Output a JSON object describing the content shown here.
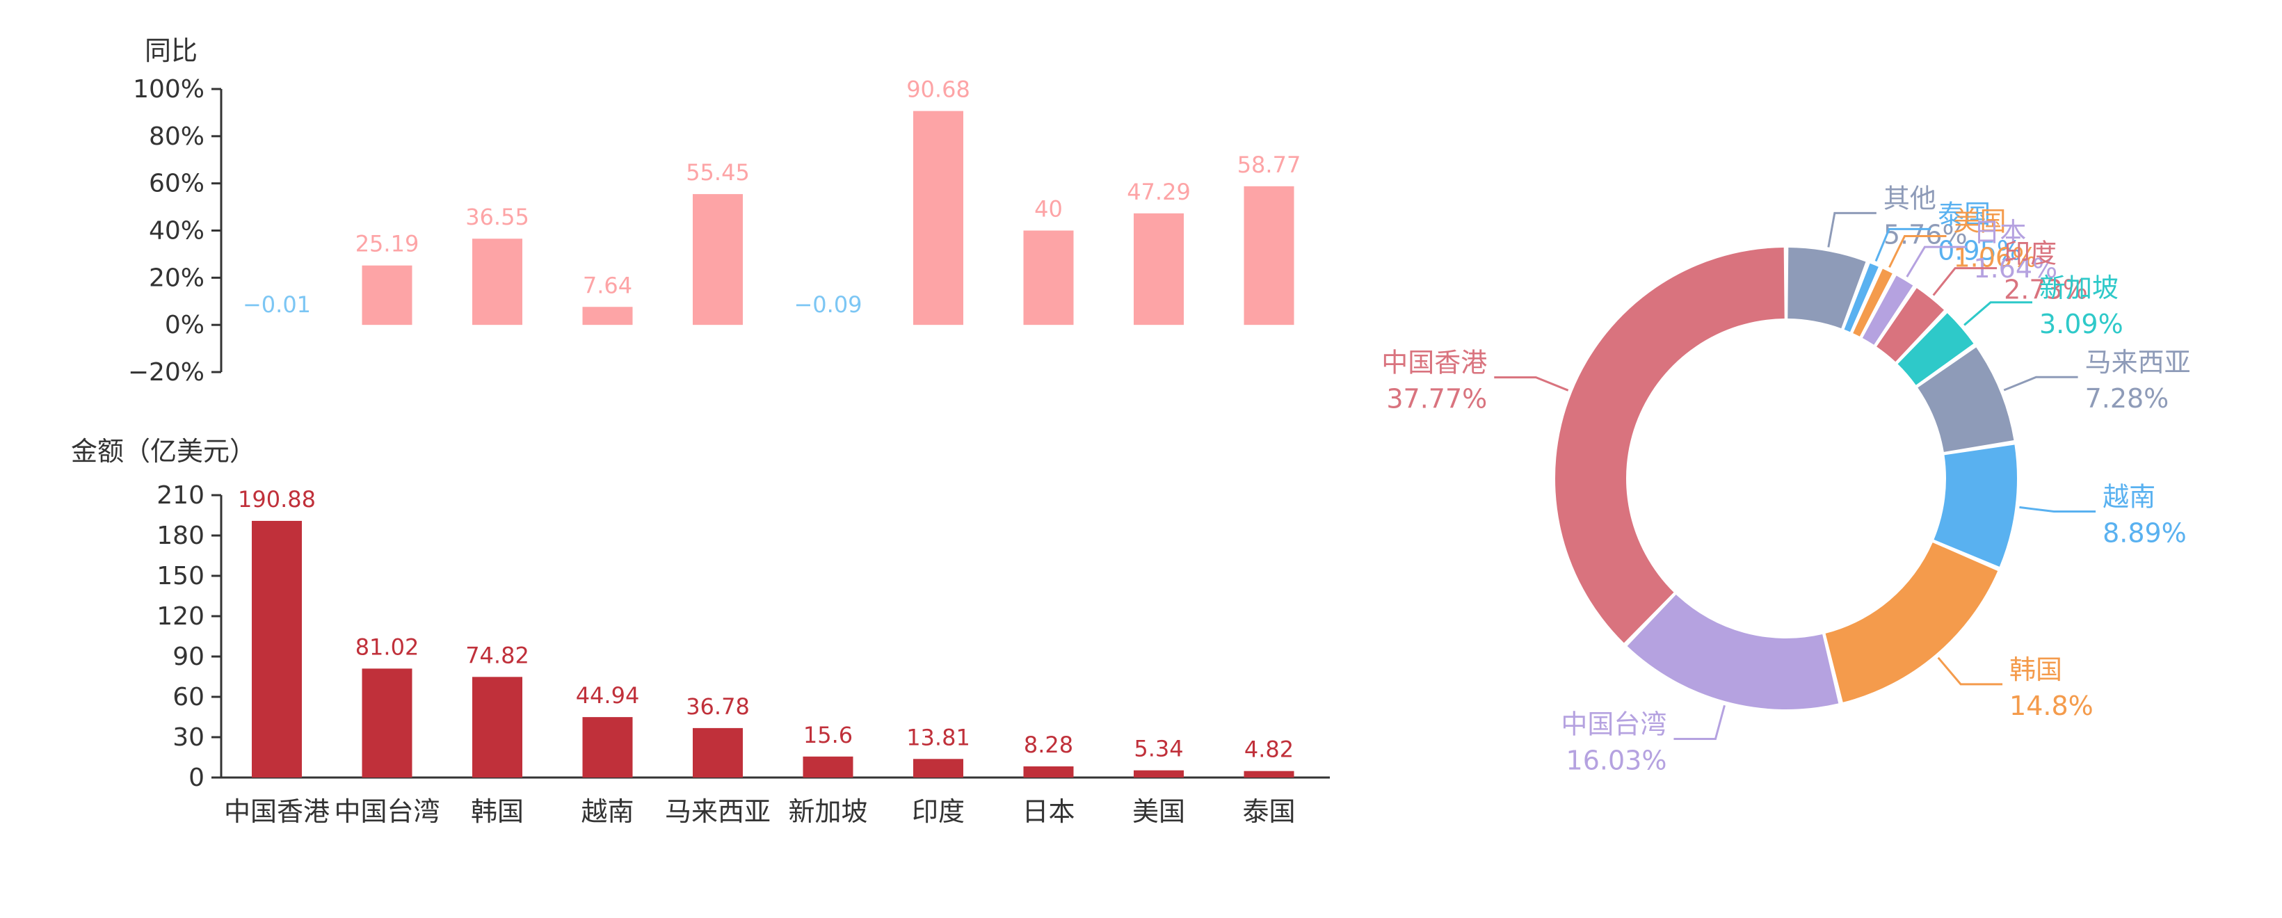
{
  "chart_data": [
    {
      "type": "bar",
      "ylabel": "同比",
      "categories": [
        "中国香港",
        "中国台湾",
        "韩国",
        "越南",
        "马来西亚",
        "新加坡",
        "印度",
        "日本",
        "美国",
        "泰国"
      ],
      "values": [
        -0.01,
        25.19,
        36.55,
        7.64,
        55.45,
        -0.09,
        90.68,
        40,
        47.29,
        58.77
      ],
      "labels": [
        "−0.01",
        "25.19",
        "36.55",
        "7.64",
        "55.45",
        "−0.09",
        "90.68",
        "40",
        "47.29",
        "58.77"
      ],
      "ylim": [
        -20,
        100
      ],
      "ticks": [
        "−20%",
        "0%",
        "20%",
        "40%",
        "60%",
        "80%",
        "100%"
      ],
      "colors": {
        "positive": "#fda4a6",
        "negative": "#7cc6f4"
      }
    },
    {
      "type": "bar",
      "ylabel": "金额（亿美元）",
      "categories": [
        "中国香港",
        "中国台湾",
        "韩国",
        "越南",
        "马来西亚",
        "新加坡",
        "印度",
        "日本",
        "美国",
        "泰国"
      ],
      "values": [
        190.88,
        81.02,
        74.82,
        44.94,
        36.78,
        15.6,
        13.81,
        8.28,
        5.34,
        4.82
      ],
      "labels": [
        "190.88",
        "81.02",
        "74.82",
        "44.94",
        "36.78",
        "15.6",
        "13.81",
        "8.28",
        "5.34",
        "4.82"
      ],
      "ylim": [
        0,
        210
      ],
      "ticks": [
        "0",
        "30",
        "60",
        "90",
        "120",
        "150",
        "180",
        "210"
      ],
      "colors": {
        "bar": "#c0303a",
        "label": "#c0303a"
      }
    },
    {
      "type": "pie",
      "variant": "donut",
      "slices": [
        {
          "name": "其他",
          "value": 5.76,
          "label": "5.76%",
          "color": "#8e9bb8"
        },
        {
          "name": "泰国",
          "value": 0.95,
          "label": "0.95%",
          "color": "#59b1f0"
        },
        {
          "name": "美国",
          "value": 1.06,
          "label": "1.06%",
          "color": "#f49b4c"
        },
        {
          "name": "日本",
          "value": 1.64,
          "label": "1.64%",
          "color": "#b5a2e0"
        },
        {
          "name": "印度",
          "value": 2.73,
          "label": "2.73%",
          "color": "#d9737e"
        },
        {
          "name": "新加坡",
          "value": 3.09,
          "label": "3.09%",
          "color": "#2ec9c9"
        },
        {
          "name": "马来西亚",
          "value": 7.28,
          "label": "7.28%",
          "color": "#8e9bb8"
        },
        {
          "name": "越南",
          "value": 8.89,
          "label": "8.89%",
          "color": "#59b1f0"
        },
        {
          "name": "韩国",
          "value": 14.8,
          "label": "14.8%",
          "color": "#f49b4c"
        },
        {
          "name": "中国台湾",
          "value": 16.03,
          "label": "16.03%",
          "color": "#b5a2e0"
        },
        {
          "name": "中国香港",
          "value": 37.77,
          "label": "37.77%",
          "color": "#d9737e"
        }
      ]
    }
  ]
}
